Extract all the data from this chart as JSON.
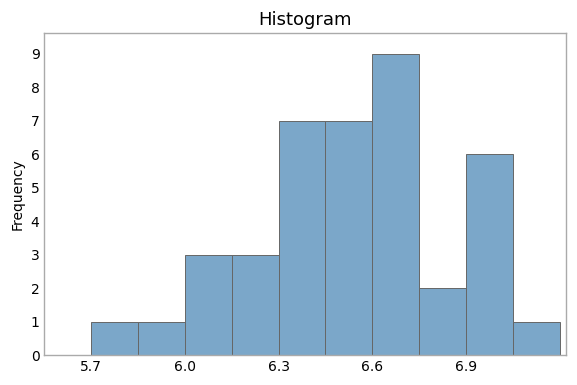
{
  "title": "Histogram",
  "ylabel": "Frequency",
  "xlabel": "",
  "bar_left_edges": [
    5.7,
    5.85,
    6.0,
    6.15,
    6.3,
    6.45,
    6.6,
    6.75,
    6.9,
    7.05
  ],
  "bar_heights": [
    1,
    1,
    3,
    3,
    7,
    7,
    9,
    2,
    6,
    1
  ],
  "bar_width": 0.15,
  "bar_color": "#7BA7C9",
  "bar_edge_color": "#666666",
  "bar_edge_width": 0.7,
  "xlim": [
    5.55,
    7.22
  ],
  "ylim": [
    0,
    9.6
  ],
  "yticks": [
    0,
    1,
    2,
    3,
    4,
    5,
    6,
    7,
    8,
    9
  ],
  "xticks": [
    5.7,
    6.0,
    6.3,
    6.6,
    6.9
  ],
  "title_fontsize": 13,
  "title_fontweight": "normal",
  "axis_label_fontsize": 10,
  "tick_fontsize": 10,
  "bg_color": "#ffffff",
  "plot_bg_color": "#ffffff",
  "spine_color": "#aaaaaa",
  "spine_linewidth": 1.0
}
